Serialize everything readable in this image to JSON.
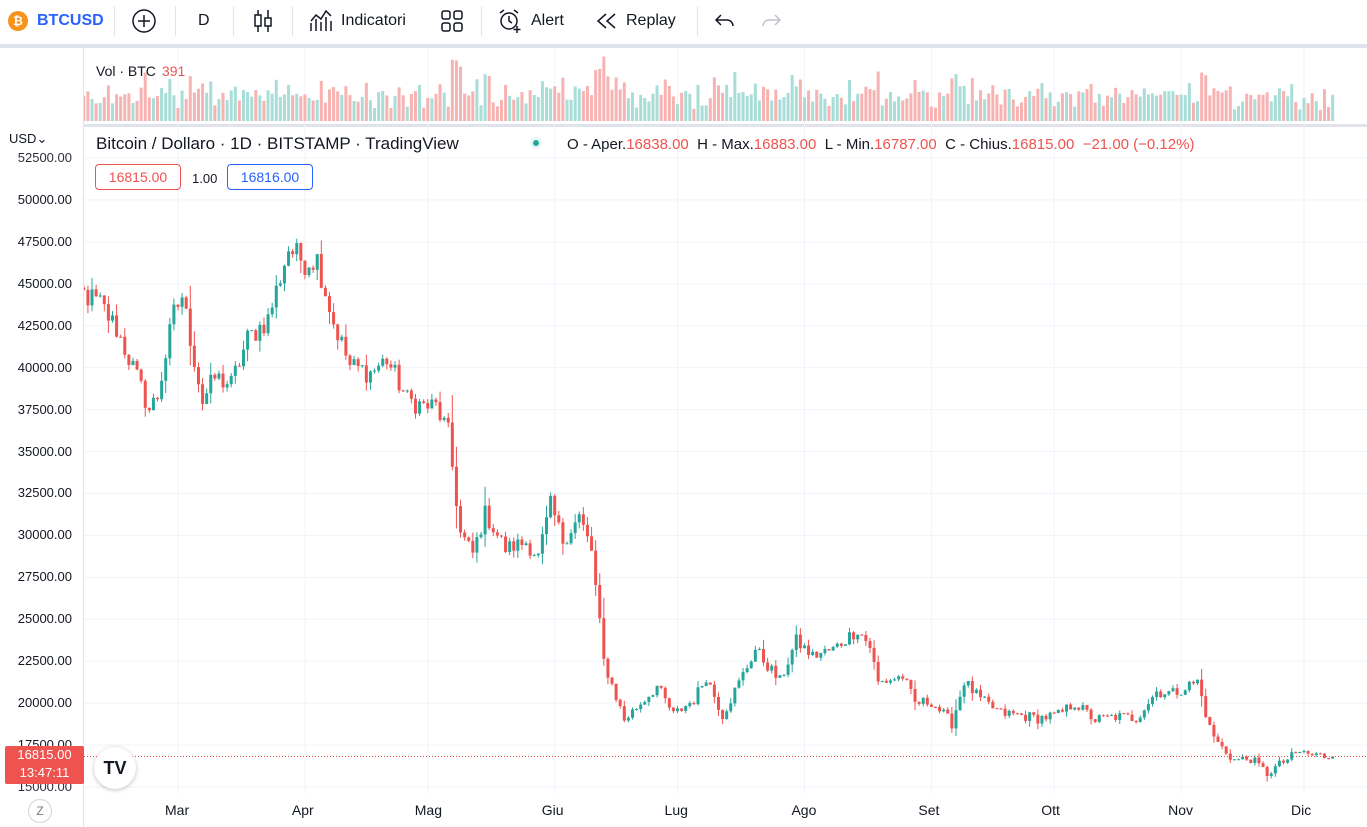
{
  "toolbar": {
    "symbol": "BTCUSD",
    "interval": "D",
    "indicators_label": "Indicatori",
    "alert_label": "Alert",
    "replay_label": "Replay",
    "icons": [
      "bitcoin-logo",
      "add-symbol-icon",
      "candles-icon",
      "indicators-icon",
      "layouts-icon",
      "alert-icon",
      "replay-icon",
      "undo-icon",
      "redo-icon"
    ]
  },
  "legend": {
    "title": "Bitcoin / Dollaro · 1D · BITSTAMP · TradingView",
    "o_label": "O - Aper.",
    "o_value": "16838.00",
    "h_label": "H - Max.",
    "h_value": "16883.00",
    "l_label": "L - Min.",
    "l_value": "16787.00",
    "c_label": "C - Chius.",
    "c_value": "16815.00",
    "change": "−21.00 (−0.12%)"
  },
  "volume_legend": {
    "label": "Vol · BTC",
    "value": "391"
  },
  "trade": {
    "sell": "16815.00",
    "spread": "1.00",
    "buy": "16816.00"
  },
  "price_scale": {
    "currency": "USD",
    "last_price": "16815.00",
    "countdown": "13:47:11"
  },
  "bottom": {
    "z_label": "Z",
    "logo": "TV"
  },
  "colors": {
    "up": "#26a69a",
    "down": "#ef5350",
    "accent": "#2962ff",
    "grid": "#f0f3fa"
  },
  "chart_data": {
    "type": "candlestick",
    "symbol": "BTCUSD",
    "interval": "1D",
    "ylim": [
      15000,
      52500
    ],
    "y_ticks": [
      "52500.00",
      "50000.00",
      "47500.00",
      "45000.00",
      "42500.00",
      "40000.00",
      "37500.00",
      "35000.00",
      "32500.00",
      "30000.00",
      "27500.00",
      "25000.00",
      "22500.00",
      "20000.00",
      "17500.00",
      "15000.00"
    ],
    "x_ticks": [
      "Mar",
      "Apr",
      "Mag",
      "Giu",
      "Lug",
      "Ago",
      "Set",
      "Ott",
      "Nov",
      "Dic"
    ],
    "last_value": 16815,
    "grid": true,
    "close_series": [
      {
        "d": "2022-02-01",
        "c": 42000
      },
      {
        "d": "2022-02-05",
        "c": 44500
      },
      {
        "d": "2022-02-10",
        "c": 43800
      },
      {
        "d": "2022-02-14",
        "c": 42300
      },
      {
        "d": "2022-02-18",
        "c": 40000
      },
      {
        "d": "2022-02-22",
        "c": 37500
      },
      {
        "d": "2022-02-24",
        "c": 38300
      },
      {
        "d": "2022-02-28",
        "c": 43200
      },
      {
        "d": "2022-03-02",
        "c": 44300
      },
      {
        "d": "2022-03-07",
        "c": 38000
      },
      {
        "d": "2022-03-10",
        "c": 39400
      },
      {
        "d": "2022-03-14",
        "c": 39000
      },
      {
        "d": "2022-03-18",
        "c": 41700
      },
      {
        "d": "2022-03-23",
        "c": 42900
      },
      {
        "d": "2022-03-28",
        "c": 47100
      },
      {
        "d": "2022-04-01",
        "c": 46300
      },
      {
        "d": "2022-04-04",
        "c": 46500
      },
      {
        "d": "2022-04-08",
        "c": 42700
      },
      {
        "d": "2022-04-12",
        "c": 40100
      },
      {
        "d": "2022-04-17",
        "c": 39700
      },
      {
        "d": "2022-04-21",
        "c": 40500
      },
      {
        "d": "2022-04-26",
        "c": 38100
      },
      {
        "d": "2022-04-30",
        "c": 37700
      },
      {
        "d": "2022-05-03",
        "c": 37700
      },
      {
        "d": "2022-05-06",
        "c": 36100
      },
      {
        "d": "2022-05-09",
        "c": 30100
      },
      {
        "d": "2022-05-12",
        "c": 28900
      },
      {
        "d": "2022-05-15",
        "c": 31300
      },
      {
        "d": "2022-05-20",
        "c": 29200
      },
      {
        "d": "2022-05-25",
        "c": 29600
      },
      {
        "d": "2022-05-28",
        "c": 28700
      },
      {
        "d": "2022-05-31",
        "c": 31800
      },
      {
        "d": "2022-06-03",
        "c": 29700
      },
      {
        "d": "2022-06-07",
        "c": 31100
      },
      {
        "d": "2022-06-10",
        "c": 29100
      },
      {
        "d": "2022-06-13",
        "c": 22500
      },
      {
        "d": "2022-06-16",
        "c": 20400
      },
      {
        "d": "2022-06-18",
        "c": 19000
      },
      {
        "d": "2022-06-22",
        "c": 20000
      },
      {
        "d": "2022-06-26",
        "c": 21000
      },
      {
        "d": "2022-06-30",
        "c": 19300
      },
      {
        "d": "2022-07-05",
        "c": 20200
      },
      {
        "d": "2022-07-08",
        "c": 21600
      },
      {
        "d": "2022-07-12",
        "c": 19300
      },
      {
        "d": "2022-07-16",
        "c": 21200
      },
      {
        "d": "2022-07-20",
        "c": 23200
      },
      {
        "d": "2022-07-26",
        "c": 21300
      },
      {
        "d": "2022-07-30",
        "c": 23700
      },
      {
        "d": "2022-08-03",
        "c": 22800
      },
      {
        "d": "2022-08-08",
        "c": 23200
      },
      {
        "d": "2022-08-14",
        "c": 24400
      },
      {
        "d": "2022-08-17",
        "c": 23400
      },
      {
        "d": "2022-08-19",
        "c": 21200
      },
      {
        "d": "2022-08-25",
        "c": 21600
      },
      {
        "d": "2022-08-28",
        "c": 20000
      },
      {
        "d": "2022-09-01",
        "c": 20100
      },
      {
        "d": "2022-09-06",
        "c": 18800
      },
      {
        "d": "2022-09-09",
        "c": 21300
      },
      {
        "d": "2022-09-13",
        "c": 20200
      },
      {
        "d": "2022-09-18",
        "c": 19400
      },
      {
        "d": "2022-09-22",
        "c": 19300
      },
      {
        "d": "2022-09-27",
        "c": 19100
      },
      {
        "d": "2022-10-02",
        "c": 19300
      },
      {
        "d": "2022-10-06",
        "c": 20000
      },
      {
        "d": "2022-10-11",
        "c": 19000
      },
      {
        "d": "2022-10-16",
        "c": 19200
      },
      {
        "d": "2022-10-21",
        "c": 19100
      },
      {
        "d": "2022-10-26",
        "c": 20700
      },
      {
        "d": "2022-10-30",
        "c": 20600
      },
      {
        "d": "2022-11-05",
        "c": 21300
      },
      {
        "d": "2022-11-08",
        "c": 18500
      },
      {
        "d": "2022-11-10",
        "c": 17600
      },
      {
        "d": "2022-11-14",
        "c": 16600
      },
      {
        "d": "2022-11-18",
        "c": 16700
      },
      {
        "d": "2022-11-22",
        "c": 15800
      },
      {
        "d": "2022-11-26",
        "c": 16500
      },
      {
        "d": "2022-11-30",
        "c": 17100
      },
      {
        "d": "2022-12-03",
        "c": 16900
      },
      {
        "d": "2022-12-08",
        "c": 16815
      }
    ]
  }
}
